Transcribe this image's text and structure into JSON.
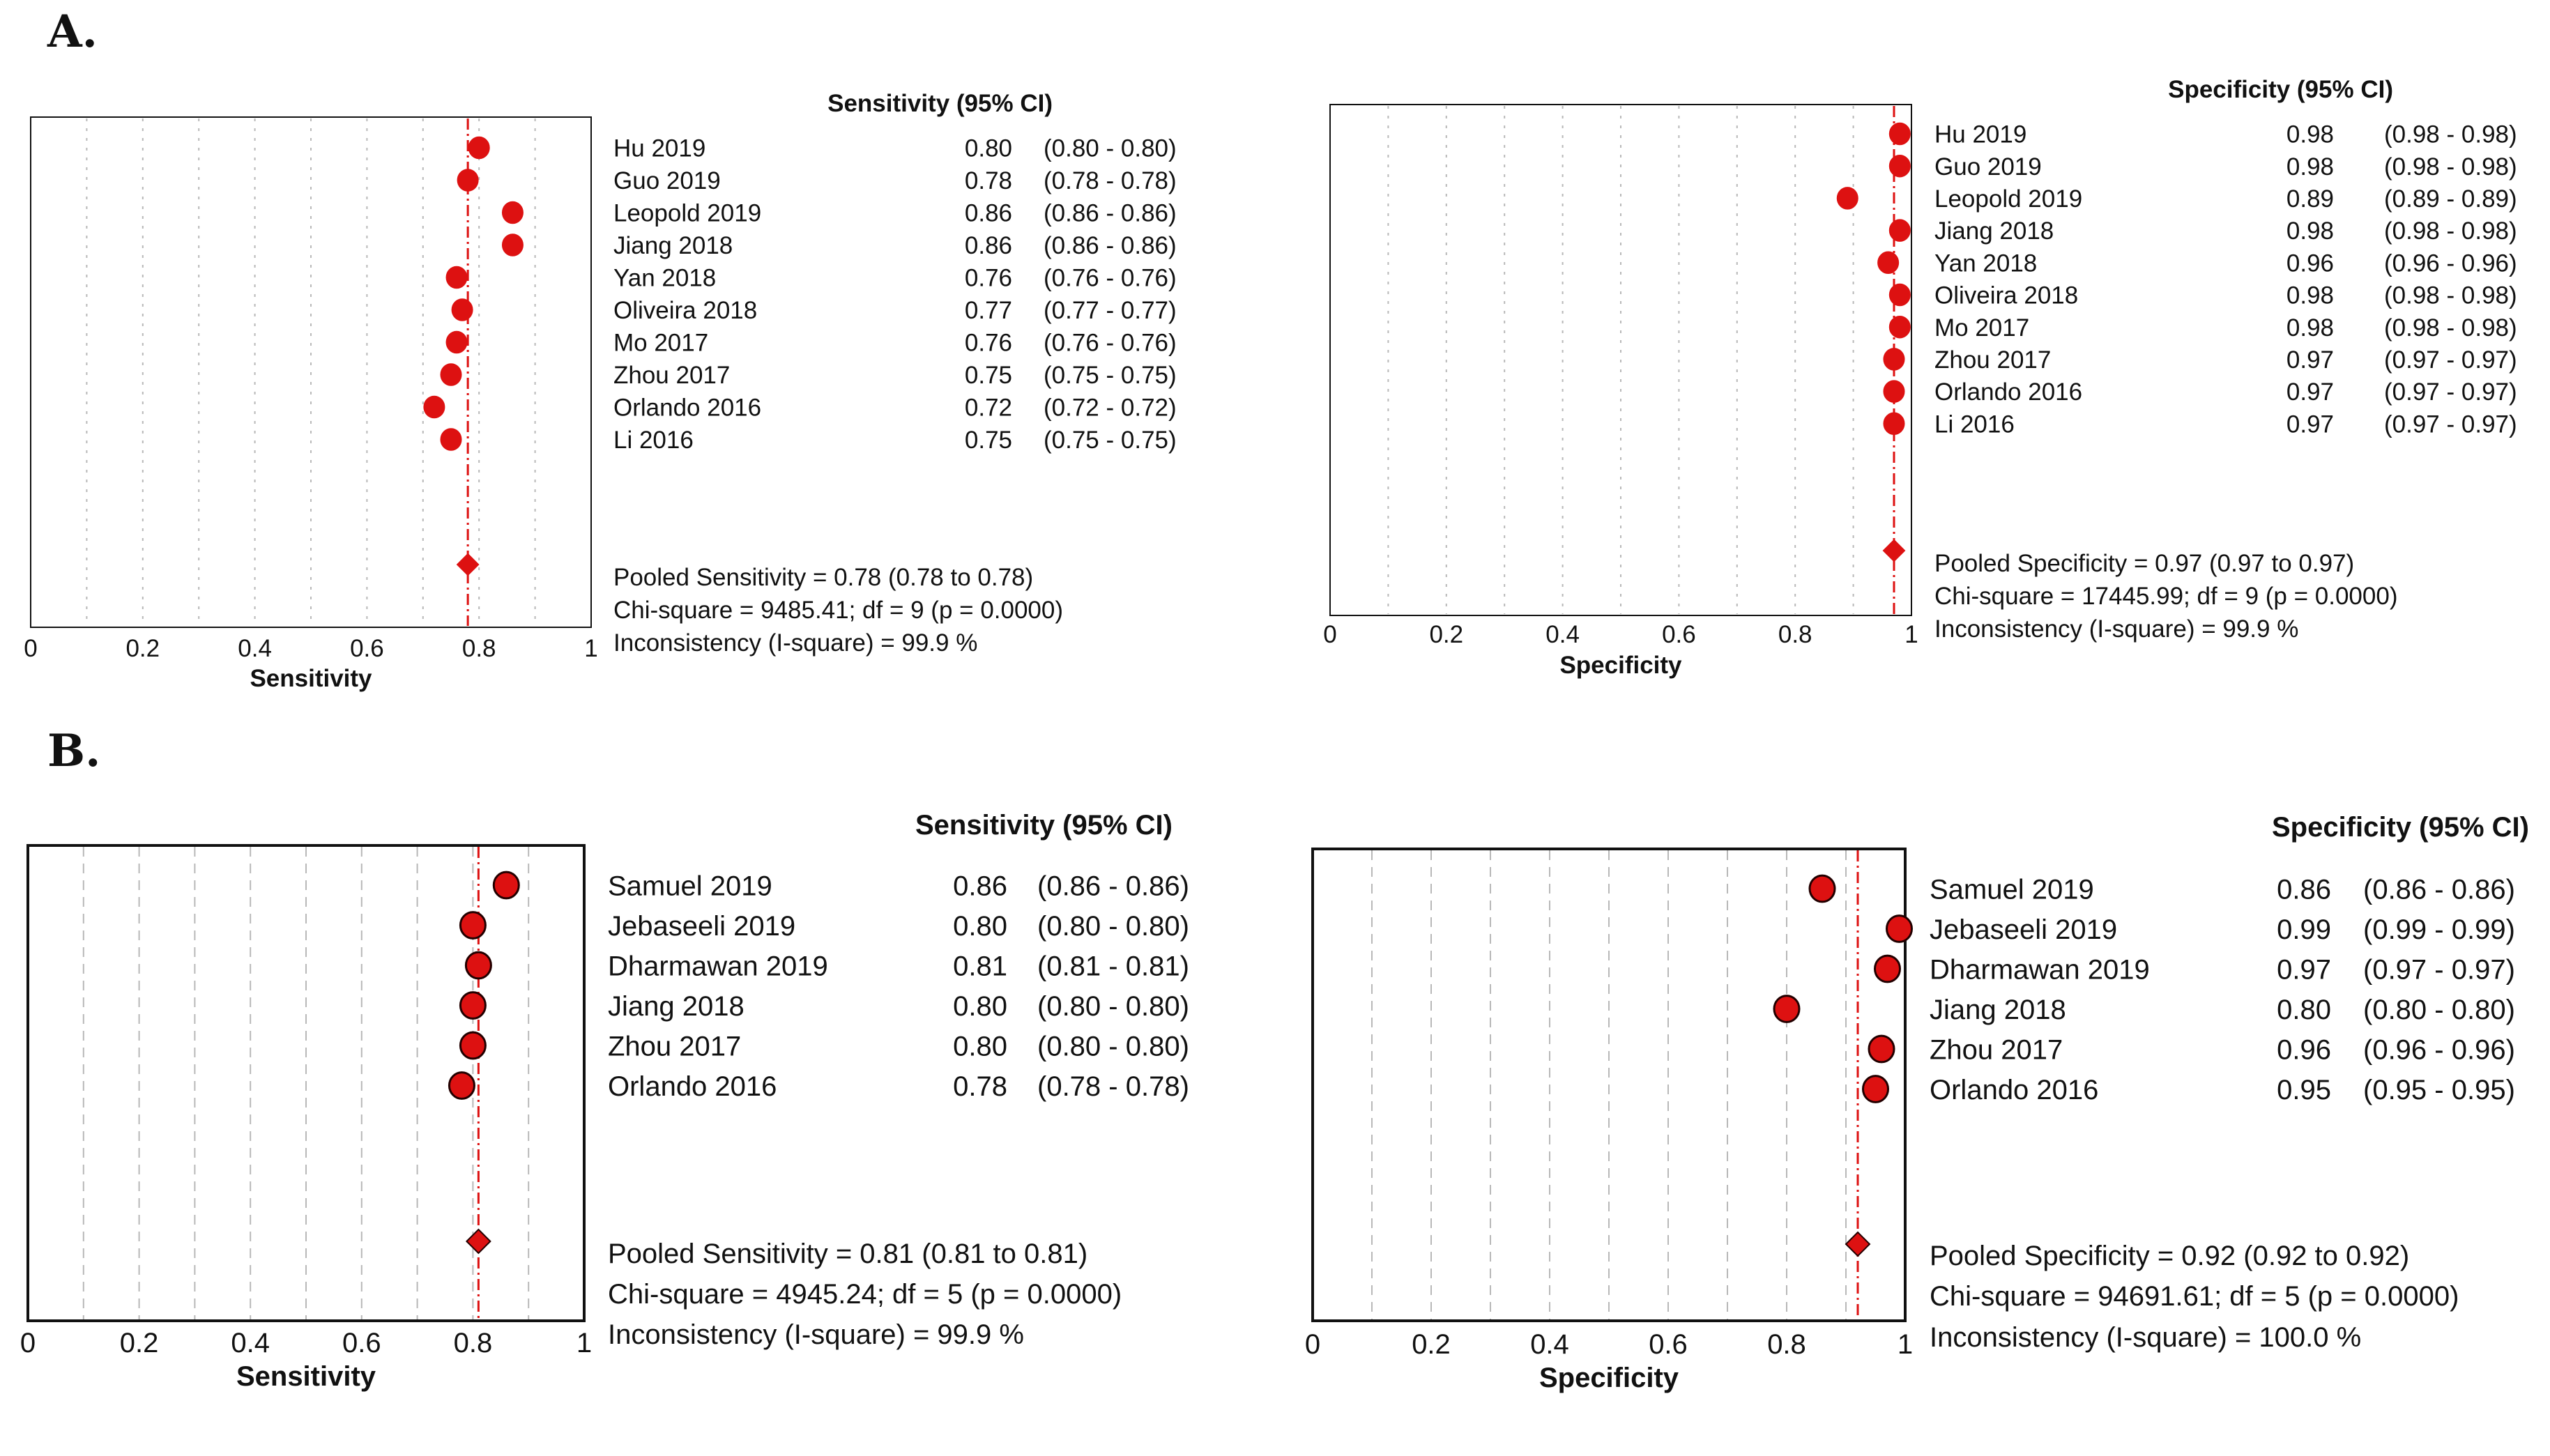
{
  "panel_labels": {
    "a": "A.",
    "b": "B."
  },
  "colors": {
    "marker": "#dd1111",
    "marker_edge": "#220000",
    "pooled_line": "#dd1111",
    "grid": "#b8b8b8",
    "frame": "#111111"
  },
  "chart_data": [
    {
      "id": "a_sens",
      "type": "forest",
      "panel": "A",
      "title": "Sensitivity (95% CI)",
      "xlabel": "Sensitivity",
      "xlim": [
        0,
        1
      ],
      "ticks": [
        "0",
        "0.2",
        "0.4",
        "0.6",
        "0.8",
        "1"
      ],
      "studies": [
        "Hu 2019",
        "Guo 2019",
        "Leopold 2019",
        "Jiang 2018",
        "Yan 2018",
        "Oliveira 2018",
        "Mo 2017",
        "Zhou 2017",
        "Orlando 2016",
        "Li 2016"
      ],
      "values": [
        0.8,
        0.78,
        0.86,
        0.86,
        0.76,
        0.77,
        0.76,
        0.75,
        0.72,
        0.75
      ],
      "value_labels": [
        "0.80",
        "0.78",
        "0.86",
        "0.86",
        "0.76",
        "0.77",
        "0.76",
        "0.75",
        "0.72",
        "0.75"
      ],
      "ci_labels": [
        "(0.80 - 0.80)",
        "(0.78 - 0.78)",
        "(0.86 - 0.86)",
        "(0.86 - 0.86)",
        "(0.76 - 0.76)",
        "(0.77 - 0.77)",
        "(0.76 - 0.76)",
        "(0.75 - 0.75)",
        "(0.72 - 0.72)",
        "(0.75 - 0.75)"
      ],
      "pooled": 0.78,
      "pooled_label": "Pooled Sensitivity = 0.78 (0.78 to 0.78)",
      "chi_label": "Chi-square = 9485.41; df =  9 (p = 0.0000)",
      "inconsistency_label": "Inconsistency (I-square) = 99.9 %"
    },
    {
      "id": "a_spec",
      "type": "forest",
      "panel": "A",
      "title": "Specificity (95% CI)",
      "xlabel": "Specificity",
      "xlim": [
        0,
        1
      ],
      "ticks": [
        "0",
        "0.2",
        "0.4",
        "0.6",
        "0.8",
        "1"
      ],
      "studies": [
        "Hu 2019",
        "Guo 2019",
        "Leopold 2019",
        "Jiang 2018",
        "Yan 2018",
        "Oliveira 2018",
        "Mo 2017",
        "Zhou 2017",
        "Orlando 2016",
        "Li 2016"
      ],
      "values": [
        0.98,
        0.98,
        0.89,
        0.98,
        0.96,
        0.98,
        0.98,
        0.97,
        0.97,
        0.97
      ],
      "value_labels": [
        "0.98",
        "0.98",
        "0.89",
        "0.98",
        "0.96",
        "0.98",
        "0.98",
        "0.97",
        "0.97",
        "0.97"
      ],
      "ci_labels": [
        "(0.98 - 0.98)",
        "(0.98 - 0.98)",
        "(0.89 - 0.89)",
        "(0.98 - 0.98)",
        "(0.96 - 0.96)",
        "(0.98 - 0.98)",
        "(0.98 - 0.98)",
        "(0.97 - 0.97)",
        "(0.97 - 0.97)",
        "(0.97 - 0.97)"
      ],
      "pooled": 0.97,
      "pooled_label": "Pooled Specificity = 0.97 (0.97 to 0.97)",
      "chi_label": "Chi-square = 17445.99; df =  9 (p = 0.0000)",
      "inconsistency_label": "Inconsistency (I-square) = 99.9 %"
    },
    {
      "id": "b_sens",
      "type": "forest",
      "panel": "B",
      "title": "Sensitivity (95% CI)",
      "xlabel": "Sensitivity",
      "xlim": [
        0,
        1
      ],
      "ticks": [
        "0",
        "0.2",
        "0.4",
        "0.6",
        "0.8",
        "1"
      ],
      "studies": [
        "Samuel 2019",
        "Jebaseeli 2019",
        "Dharmawan 2019",
        "Jiang 2018",
        "Zhou 2017",
        "Orlando 2016"
      ],
      "values": [
        0.86,
        0.8,
        0.81,
        0.8,
        0.8,
        0.78
      ],
      "value_labels": [
        "0.86",
        "0.80",
        "0.81",
        "0.80",
        "0.80",
        "0.78"
      ],
      "ci_labels": [
        "(0.86 - 0.86)",
        "(0.80 - 0.80)",
        "(0.81 - 0.81)",
        "(0.80 - 0.80)",
        "(0.80 - 0.80)",
        "(0.78 - 0.78)"
      ],
      "pooled": 0.81,
      "pooled_label": "Pooled Sensitivity = 0.81 (0.81 to 0.81)",
      "chi_label": "Chi-square = 4945.24; df =  5 (p = 0.0000)",
      "inconsistency_label": "Inconsistency (I-square) = 99.9 %"
    },
    {
      "id": "b_spec",
      "type": "forest",
      "panel": "B",
      "title": "Specificity (95% CI)",
      "xlabel": "Specificity",
      "xlim": [
        0,
        1
      ],
      "ticks": [
        "0",
        "0.2",
        "0.4",
        "0.6",
        "0.8",
        "1"
      ],
      "studies": [
        "Samuel 2019",
        "Jebaseeli 2019",
        "Dharmawan 2019",
        "Jiang 2018",
        "Zhou 2017",
        "Orlando 2016"
      ],
      "values": [
        0.86,
        0.99,
        0.97,
        0.8,
        0.96,
        0.95
      ],
      "value_labels": [
        "0.86",
        "0.99",
        "0.97",
        "0.80",
        "0.96",
        "0.95"
      ],
      "ci_labels": [
        "(0.86 - 0.86)",
        "(0.99 - 0.99)",
        "(0.97 - 0.97)",
        "(0.80 - 0.80)",
        "(0.96 - 0.96)",
        "(0.95 - 0.95)"
      ],
      "pooled": 0.92,
      "pooled_label": "Pooled Specificity = 0.92 (0.92 to 0.92)",
      "chi_label": "Chi-square = 94691.61; df =  5 (p = 0.0000)",
      "inconsistency_label": "Inconsistency (I-square) = 100.0 %"
    }
  ]
}
